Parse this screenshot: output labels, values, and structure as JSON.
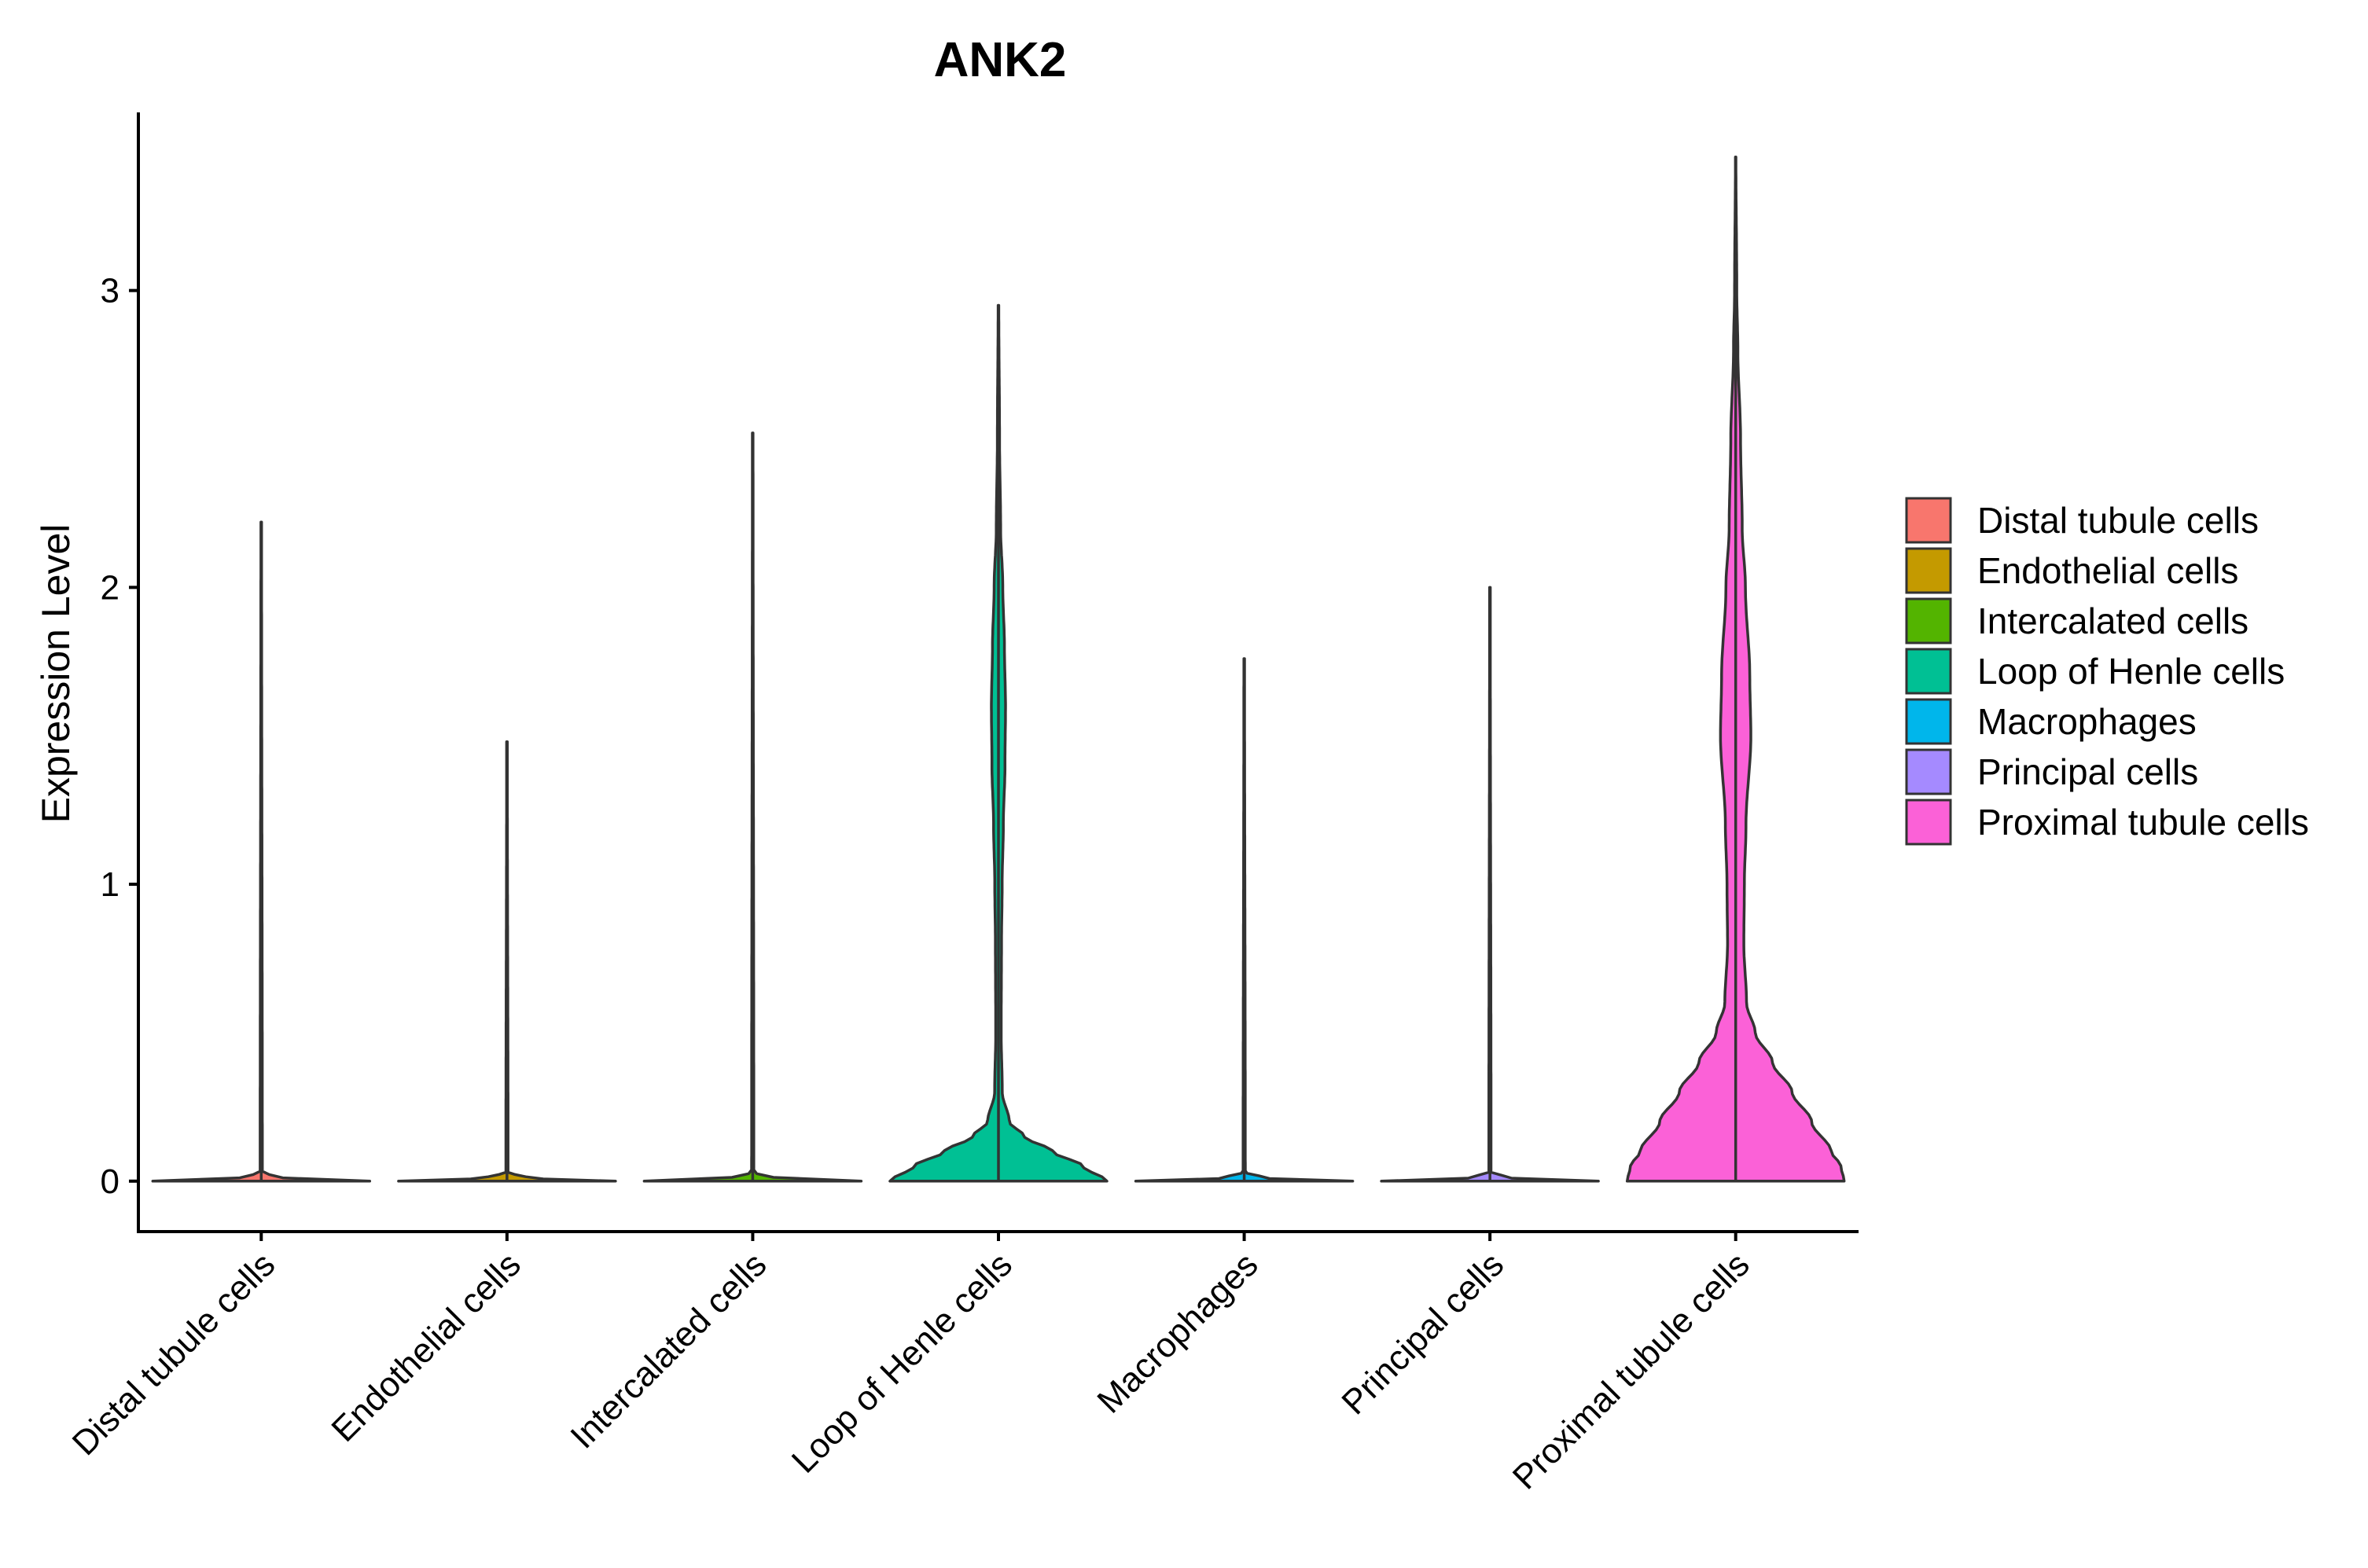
{
  "chart_data": {
    "type": "violin",
    "title": "ANK2",
    "xlabel": "",
    "ylabel": "Expression Level",
    "ylim": [
      -0.17,
      3.6
    ],
    "yticks": [
      0,
      1,
      2,
      3
    ],
    "categories": [
      "Distal tubule cells",
      "Endothelial cells",
      "Intercalated cells",
      "Loop of Henle cells",
      "Macrophages",
      "Principal cells",
      "Proximal tubule cells"
    ],
    "colors": [
      "#F8766D",
      "#C49A00",
      "#53B400",
      "#00C094",
      "#00B6EB",
      "#A58AFF",
      "#FB61D7"
    ],
    "series": [
      {
        "name": "Distal tubule cells",
        "max": 2.22,
        "profile": [
          [
            0,
            1.0
          ],
          [
            0.01,
            0.2
          ],
          [
            0.03,
            0.01
          ],
          [
            2.22,
            0.003
          ]
        ]
      },
      {
        "name": "Endothelial cells",
        "max": 1.48,
        "profile": [
          [
            0,
            1.0
          ],
          [
            0.01,
            0.2
          ],
          [
            0.03,
            0.01
          ],
          [
            1.48,
            0.003
          ]
        ]
      },
      {
        "name": "Intercalated cells",
        "max": 2.52,
        "profile": [
          [
            0,
            1.0
          ],
          [
            0.01,
            0.2
          ],
          [
            0.03,
            0.01
          ],
          [
            2.52,
            0.003
          ]
        ]
      },
      {
        "name": "Loop of Henle cells",
        "max": 2.95,
        "profile": [
          [
            0,
            1.0
          ],
          [
            0.05,
            0.78
          ],
          [
            0.1,
            0.5
          ],
          [
            0.15,
            0.24
          ],
          [
            0.2,
            0.1
          ],
          [
            0.3,
            0.035
          ],
          [
            0.5,
            0.025
          ],
          [
            0.8,
            0.028
          ],
          [
            1.0,
            0.034
          ],
          [
            1.2,
            0.045
          ],
          [
            1.4,
            0.06
          ],
          [
            1.6,
            0.065
          ],
          [
            1.8,
            0.055
          ],
          [
            2.0,
            0.04
          ],
          [
            2.2,
            0.02
          ],
          [
            2.5,
            0.01
          ],
          [
            2.95,
            0.003
          ]
        ]
      },
      {
        "name": "Macrophages",
        "max": 1.76,
        "profile": [
          [
            0,
            1.0
          ],
          [
            0.01,
            0.2
          ],
          [
            0.03,
            0.01
          ],
          [
            1.76,
            0.003
          ]
        ]
      },
      {
        "name": "Principal cells",
        "max": 2.0,
        "profile": [
          [
            0,
            1.0
          ],
          [
            0.01,
            0.2
          ],
          [
            0.03,
            0.01
          ],
          [
            2.0,
            0.003
          ]
        ]
      },
      {
        "name": "Proximal tubule cells",
        "max": 3.45,
        "profile": [
          [
            0,
            1.0
          ],
          [
            0.05,
            0.97
          ],
          [
            0.1,
            0.88
          ],
          [
            0.2,
            0.7
          ],
          [
            0.3,
            0.52
          ],
          [
            0.4,
            0.34
          ],
          [
            0.5,
            0.18
          ],
          [
            0.6,
            0.1
          ],
          [
            0.8,
            0.075
          ],
          [
            1.0,
            0.08
          ],
          [
            1.2,
            0.095
          ],
          [
            1.5,
            0.14
          ],
          [
            1.7,
            0.13
          ],
          [
            2.0,
            0.09
          ],
          [
            2.2,
            0.06
          ],
          [
            2.5,
            0.045
          ],
          [
            2.8,
            0.02
          ],
          [
            3.0,
            0.01
          ],
          [
            3.45,
            0.002
          ]
        ]
      }
    ],
    "legend": {
      "position": "right",
      "entries": [
        "Distal tubule cells",
        "Endothelial cells",
        "Intercalated cells",
        "Loop of Henle cells",
        "Macrophages",
        "Principal cells",
        "Proximal tubule cells"
      ]
    },
    "grid": false
  }
}
